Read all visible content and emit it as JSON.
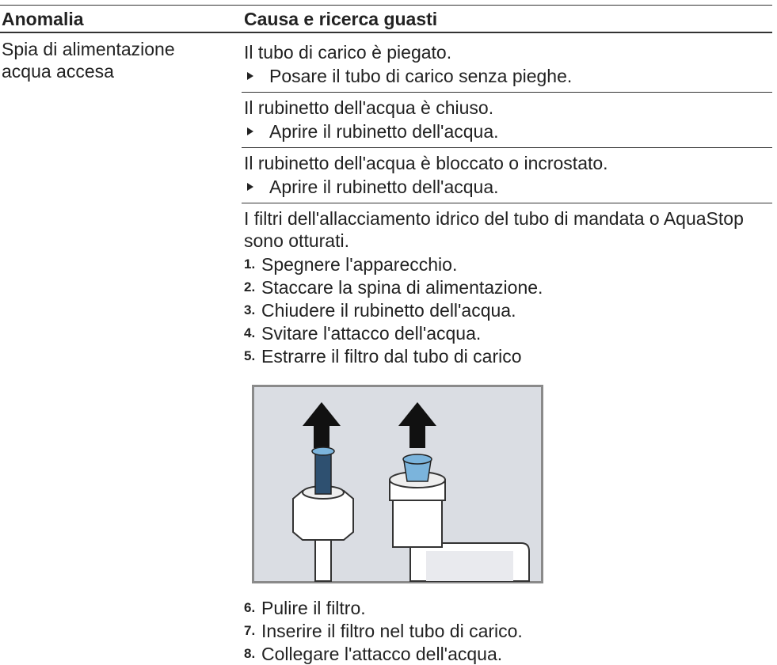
{
  "table": {
    "headers": [
      "Anomalia",
      "Causa e ricerca guasti"
    ],
    "rows": [
      {
        "fault": "Spia di alimentazione acqua accesa",
        "causes": [
          {
            "cause": "Il tubo di carico è piegato.",
            "actions": [
              "Posare il tubo di carico senza pieghe."
            ]
          },
          {
            "cause": "Il rubinetto dell'acqua è chiuso.",
            "actions": [
              "Aprire il rubinetto dell'acqua."
            ]
          },
          {
            "cause": "Il rubinetto dell'acqua è bloccato o incrostato.",
            "actions": [
              "Aprire il rubinetto dell'acqua."
            ]
          },
          {
            "cause": "I filtri dell'allacciamento idrico del tubo di mandata o AquaStop sono otturati.",
            "steps": [
              {
                "number": "1.",
                "text": "Spegnere l'apparecchio."
              },
              {
                "number": "2.",
                "text": "Staccare la spina di alimentazione."
              },
              {
                "number": "3.",
                "text": "Chiudere il rubinetto dell'acqua."
              },
              {
                "number": "4.",
                "text": "Svitare l'attacco dell'acqua."
              },
              {
                "number": "5.",
                "text": "Estrarre il filtro dal tubo di carico"
              },
              {
                "number": "6.",
                "text": "Pulire il filtro."
              },
              {
                "number": "7.",
                "text": "Inserire il filtro nel tubo di carico."
              },
              {
                "number": "8.",
                "text": "Collegare l'attacco dell'acqua."
              }
            ]
          }
        ]
      }
    ]
  }
}
